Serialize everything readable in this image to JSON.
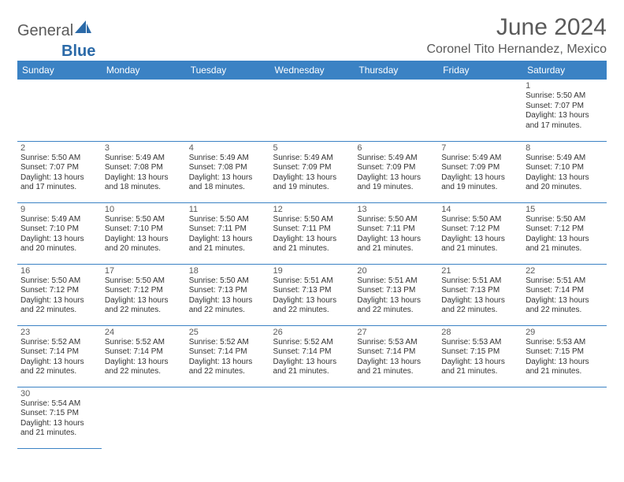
{
  "logo": {
    "part1": "General",
    "part2": "Blue"
  },
  "title": "June 2024",
  "location": "Coronel Tito Hernandez, Mexico",
  "colors": {
    "header_bg": "#3b82c4",
    "header_text": "#ffffff",
    "row_divider": "#3b82c4",
    "cell_top_border": "#b0b0b0",
    "text_gray": "#5a5a5a",
    "logo_blue": "#2b6aa8"
  },
  "typography": {
    "title_fontsize": 30,
    "location_fontsize": 16,
    "dayheader_fontsize": 12,
    "daynum_fontsize": 11,
    "body_fontsize": 10
  },
  "day_headers": [
    "Sunday",
    "Monday",
    "Tuesday",
    "Wednesday",
    "Thursday",
    "Friday",
    "Saturday"
  ],
  "weeks": [
    [
      null,
      null,
      null,
      null,
      null,
      null,
      {
        "n": "1",
        "sr": "5:50 AM",
        "ss": "7:07 PM",
        "dl": "13 hours and 17 minutes."
      }
    ],
    [
      {
        "n": "2",
        "sr": "5:50 AM",
        "ss": "7:07 PM",
        "dl": "13 hours and 17 minutes."
      },
      {
        "n": "3",
        "sr": "5:49 AM",
        "ss": "7:08 PM",
        "dl": "13 hours and 18 minutes."
      },
      {
        "n": "4",
        "sr": "5:49 AM",
        "ss": "7:08 PM",
        "dl": "13 hours and 18 minutes."
      },
      {
        "n": "5",
        "sr": "5:49 AM",
        "ss": "7:09 PM",
        "dl": "13 hours and 19 minutes."
      },
      {
        "n": "6",
        "sr": "5:49 AM",
        "ss": "7:09 PM",
        "dl": "13 hours and 19 minutes."
      },
      {
        "n": "7",
        "sr": "5:49 AM",
        "ss": "7:09 PM",
        "dl": "13 hours and 19 minutes."
      },
      {
        "n": "8",
        "sr": "5:49 AM",
        "ss": "7:10 PM",
        "dl": "13 hours and 20 minutes."
      }
    ],
    [
      {
        "n": "9",
        "sr": "5:49 AM",
        "ss": "7:10 PM",
        "dl": "13 hours and 20 minutes."
      },
      {
        "n": "10",
        "sr": "5:50 AM",
        "ss": "7:10 PM",
        "dl": "13 hours and 20 minutes."
      },
      {
        "n": "11",
        "sr": "5:50 AM",
        "ss": "7:11 PM",
        "dl": "13 hours and 21 minutes."
      },
      {
        "n": "12",
        "sr": "5:50 AM",
        "ss": "7:11 PM",
        "dl": "13 hours and 21 minutes."
      },
      {
        "n": "13",
        "sr": "5:50 AM",
        "ss": "7:11 PM",
        "dl": "13 hours and 21 minutes."
      },
      {
        "n": "14",
        "sr": "5:50 AM",
        "ss": "7:12 PM",
        "dl": "13 hours and 21 minutes."
      },
      {
        "n": "15",
        "sr": "5:50 AM",
        "ss": "7:12 PM",
        "dl": "13 hours and 21 minutes."
      }
    ],
    [
      {
        "n": "16",
        "sr": "5:50 AM",
        "ss": "7:12 PM",
        "dl": "13 hours and 22 minutes."
      },
      {
        "n": "17",
        "sr": "5:50 AM",
        "ss": "7:12 PM",
        "dl": "13 hours and 22 minutes."
      },
      {
        "n": "18",
        "sr": "5:50 AM",
        "ss": "7:13 PM",
        "dl": "13 hours and 22 minutes."
      },
      {
        "n": "19",
        "sr": "5:51 AM",
        "ss": "7:13 PM",
        "dl": "13 hours and 22 minutes."
      },
      {
        "n": "20",
        "sr": "5:51 AM",
        "ss": "7:13 PM",
        "dl": "13 hours and 22 minutes."
      },
      {
        "n": "21",
        "sr": "5:51 AM",
        "ss": "7:13 PM",
        "dl": "13 hours and 22 minutes."
      },
      {
        "n": "22",
        "sr": "5:51 AM",
        "ss": "7:14 PM",
        "dl": "13 hours and 22 minutes."
      }
    ],
    [
      {
        "n": "23",
        "sr": "5:52 AM",
        "ss": "7:14 PM",
        "dl": "13 hours and 22 minutes."
      },
      {
        "n": "24",
        "sr": "5:52 AM",
        "ss": "7:14 PM",
        "dl": "13 hours and 22 minutes."
      },
      {
        "n": "25",
        "sr": "5:52 AM",
        "ss": "7:14 PM",
        "dl": "13 hours and 22 minutes."
      },
      {
        "n": "26",
        "sr": "5:52 AM",
        "ss": "7:14 PM",
        "dl": "13 hours and 21 minutes."
      },
      {
        "n": "27",
        "sr": "5:53 AM",
        "ss": "7:14 PM",
        "dl": "13 hours and 21 minutes."
      },
      {
        "n": "28",
        "sr": "5:53 AM",
        "ss": "7:15 PM",
        "dl": "13 hours and 21 minutes."
      },
      {
        "n": "29",
        "sr": "5:53 AM",
        "ss": "7:15 PM",
        "dl": "13 hours and 21 minutes."
      }
    ],
    [
      {
        "n": "30",
        "sr": "5:54 AM",
        "ss": "7:15 PM",
        "dl": "13 hours and 21 minutes."
      },
      null,
      null,
      null,
      null,
      null,
      null
    ]
  ],
  "labels": {
    "sunrise_prefix": "Sunrise: ",
    "sunset_prefix": "Sunset: ",
    "daylight_prefix": "Daylight: "
  }
}
